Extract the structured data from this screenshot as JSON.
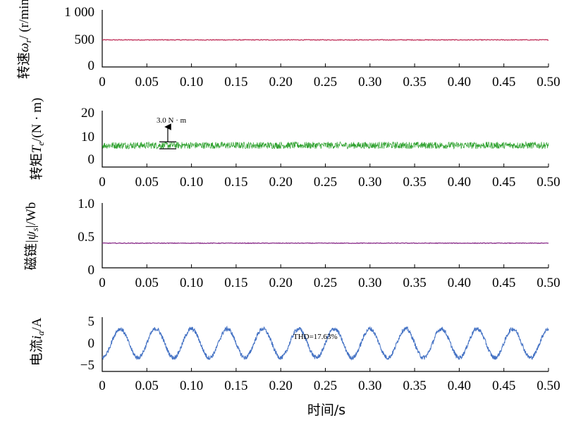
{
  "xlabel": "时间/s",
  "x_ticks": [
    "0",
    "0.05",
    "0.10",
    "0.15",
    "0.20",
    "0.25",
    "0.30",
    "0.35",
    "0.40",
    "0.45",
    "0.50"
  ],
  "chart_data": [
    {
      "type": "line",
      "ylabel_text": "转速",
      "ylabel_symbol": "ω",
      "ylabel_sub": "r",
      "ylabel_unit": "/ (r/min)",
      "y_ticks": [
        "1 000",
        "500",
        "0"
      ],
      "ylim": [
        0,
        1000
      ],
      "xlim": [
        0,
        0.5
      ],
      "color": "#c0305a",
      "series": [
        {
          "x": [
            0,
            0.5
          ],
          "y": [
            480,
            480
          ],
          "ripple": 6
        }
      ]
    },
    {
      "type": "line",
      "ylabel_text": "转矩",
      "ylabel_symbol": "T",
      "ylabel_sub": "e",
      "ylabel_unit": "/(N · m)",
      "y_ticks": [
        "20",
        "10",
        "0"
      ],
      "ylim": [
        -3,
        20
      ],
      "xlim": [
        0,
        0.5
      ],
      "color": "#2ca02c",
      "annotation": "3.0 N · m",
      "annotation_band": [
        4.5,
        7.5
      ],
      "series": [
        {
          "x": [
            0,
            0.5
          ],
          "y": [
            6,
            6
          ],
          "ripple": 1.5
        }
      ]
    },
    {
      "type": "line",
      "ylabel_text": "磁链",
      "ylabel_symbol": "|ψ",
      "ylabel_sub": "s",
      "ylabel_unit": "|/Wb",
      "y_ticks": [
        "1.0",
        "0.5",
        "0"
      ],
      "ylim": [
        0,
        1
      ],
      "xlim": [
        0,
        0.5
      ],
      "color": "#8b2f8b",
      "series": [
        {
          "x": [
            0,
            0.5
          ],
          "y": [
            0.38,
            0.38
          ],
          "ripple": 0.005
        }
      ]
    },
    {
      "type": "line",
      "ylabel_text": "电流",
      "ylabel_symbol": "i",
      "ylabel_sub": "a",
      "ylabel_unit": "/A",
      "y_ticks": [
        "5",
        "0",
        "−5"
      ],
      "ylim": [
        -6,
        5
      ],
      "xlim": [
        0,
        0.5
      ],
      "color": "#4472c4",
      "annotation": "THD=17.63%",
      "series": [
        {
          "amplitude": 3.3,
          "frequency_hz": 25,
          "phase": -1.57,
          "ripple": 0.5
        }
      ]
    }
  ]
}
